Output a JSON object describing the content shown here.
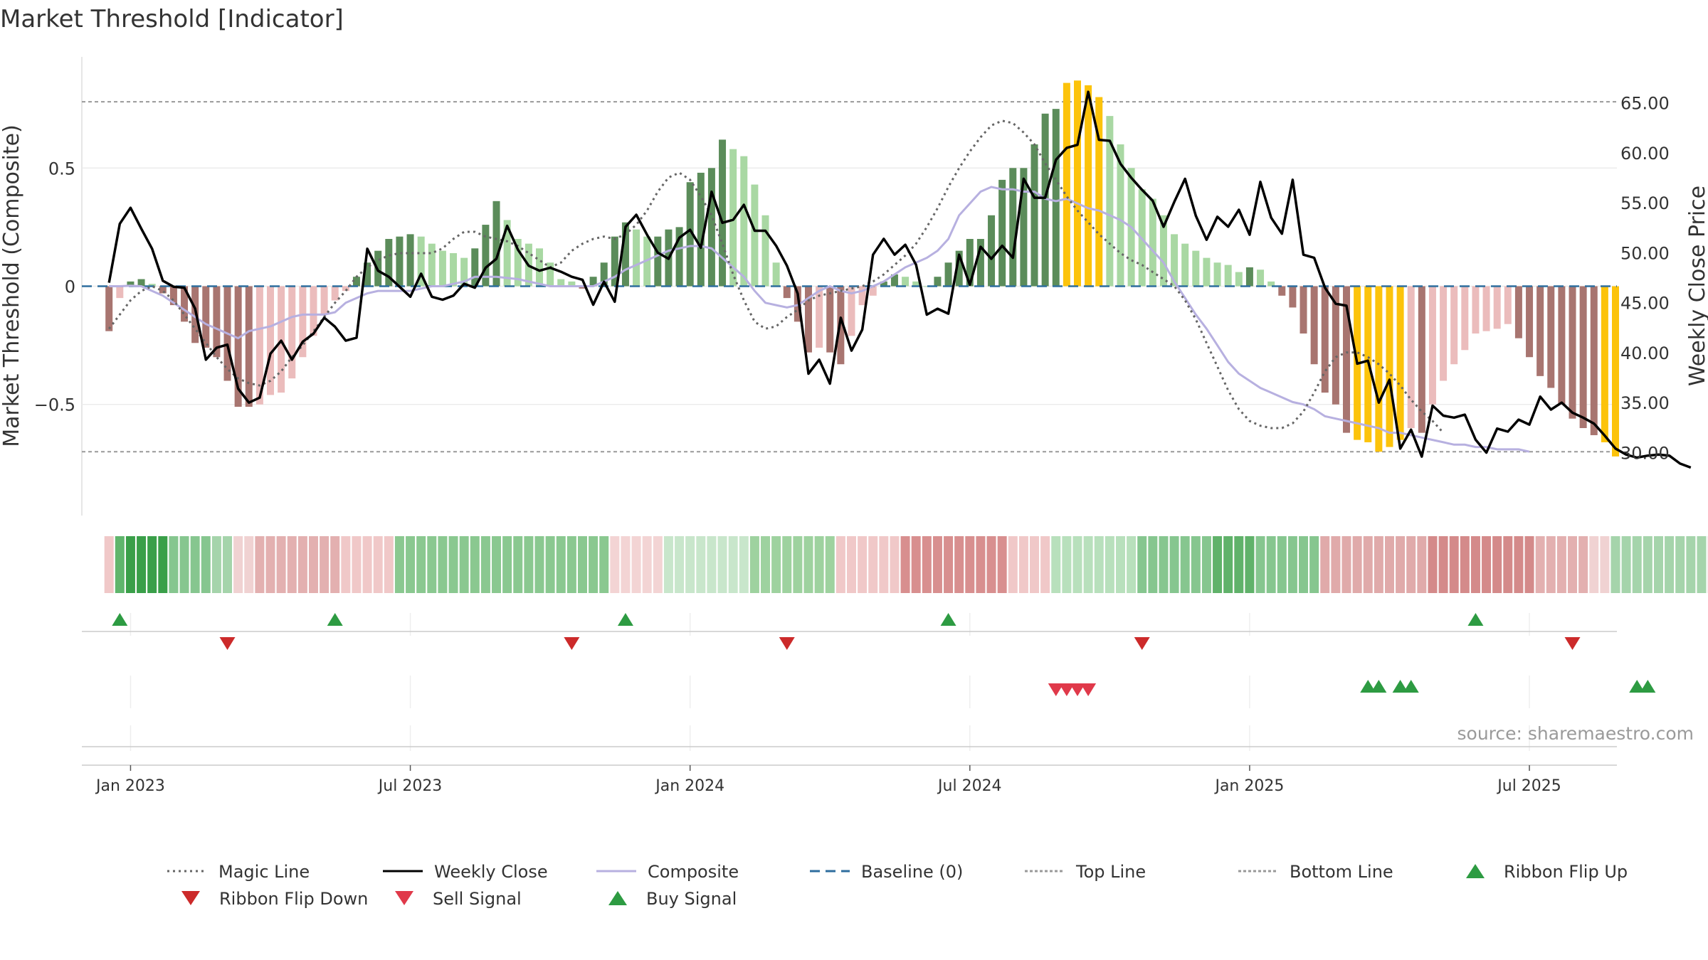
{
  "chart_data": {
    "type": "bar",
    "title": "Market Threshold [Indicator]",
    "source": "source: sharemaestro.com",
    "y_left_label": "Market Threshold (Composite)",
    "y_right_label": "Weekly Close Price",
    "y_left_range": [
      -0.97,
      0.97
    ],
    "y_right_range": [
      23.7,
      69.6
    ],
    "y_left_ticks": [
      {
        "value": 0.5,
        "label": "0.5"
      },
      {
        "value": 0,
        "label": "0"
      },
      {
        "value": -0.5,
        "label": "−0.5"
      }
    ],
    "y_right_ticks": [
      {
        "value": 65,
        "label": "65.00"
      },
      {
        "value": 60,
        "label": "60.00"
      },
      {
        "value": 55,
        "label": "55.00"
      },
      {
        "value": 50,
        "label": "50.00"
      },
      {
        "value": 45,
        "label": "45.00"
      },
      {
        "value": 40,
        "label": "40.00"
      },
      {
        "value": 35,
        "label": "35.00"
      },
      {
        "value": 30,
        "label": "30.00"
      }
    ],
    "x_ticks": [
      {
        "week": 2,
        "label": "Jan 2023"
      },
      {
        "week": 28,
        "label": "Jul 2023"
      },
      {
        "week": 54,
        "label": "Jan 2024"
      },
      {
        "week": 80,
        "label": "Jul 2024"
      },
      {
        "week": 106,
        "label": "Jan 2025"
      },
      {
        "week": 132,
        "label": "Jul 2025"
      }
    ],
    "top_line": 0.78,
    "bottom_line": -0.7,
    "bar_values": [
      -0.19,
      -0.05,
      0.02,
      0.03,
      0.01,
      -0.03,
      -0.08,
      -0.15,
      -0.24,
      -0.26,
      -0.3,
      -0.4,
      -0.51,
      -0.51,
      -0.5,
      -0.46,
      -0.45,
      -0.39,
      -0.3,
      -0.21,
      -0.12,
      -0.06,
      -0.02,
      0.04,
      0.1,
      0.15,
      0.2,
      0.21,
      0.22,
      0.21,
      0.18,
      0.15,
      0.14,
      0.12,
      0.16,
      0.26,
      0.36,
      0.28,
      0.2,
      0.18,
      0.16,
      0.1,
      0.03,
      0.02,
      -0.01,
      0.04,
      0.1,
      0.21,
      0.27,
      0.24,
      0.21,
      0.21,
      0.24,
      0.25,
      0.44,
      0.48,
      0.5,
      0.62,
      0.58,
      0.55,
      0.43,
      0.3,
      0.1,
      -0.05,
      -0.15,
      -0.28,
      -0.26,
      -0.28,
      -0.33,
      -0.21,
      -0.08,
      -0.04,
      0.02,
      0.05,
      0.04,
      0.02,
      0.0,
      0.04,
      0.1,
      0.15,
      0.2,
      0.2,
      0.3,
      0.45,
      0.5,
      0.5,
      0.6,
      0.73,
      0.75,
      0.86,
      0.87,
      0.85,
      0.8,
      0.72,
      0.6,
      0.5,
      0.41,
      0.37,
      0.3,
      0.22,
      0.18,
      0.15,
      0.12,
      0.1,
      0.09,
      0.06,
      0.08,
      0.07,
      0.02,
      -0.04,
      -0.09,
      -0.2,
      -0.33,
      -0.45,
      -0.5,
      -0.62,
      -0.65,
      -0.66,
      -0.7,
      -0.68,
      -0.65,
      -0.6,
      -0.62,
      -0.5,
      -0.4,
      -0.33,
      -0.27,
      -0.2,
      -0.19,
      -0.18,
      -0.16,
      -0.22,
      -0.3,
      -0.38,
      -0.43,
      -0.5,
      -0.56,
      -0.6,
      -0.63,
      -0.66,
      -0.72
    ],
    "weekly_close": [
      47,
      52.9,
      54.5,
      52.4,
      50.4,
      47.2,
      46.6,
      46.5,
      44.4,
      39.3,
      40.5,
      40.8,
      36.4,
      35,
      35.5,
      39.9,
      41.2,
      39.3,
      41.1,
      41.9,
      43.5,
      42.6,
      41.2,
      41.5,
      50.4,
      48.2,
      47.6,
      46.6,
      45.6,
      47.9,
      45.6,
      45.3,
      45.7,
      46.9,
      46.5,
      48.5,
      49.4,
      52.7,
      50.3,
      48.7,
      48.2,
      48.5,
      48.1,
      47.6,
      47.3,
      44.8,
      47.1,
      45.1,
      52.6,
      53.8,
      51.8,
      50,
      49.4,
      51.5,
      52.3,
      50.5,
      56.1,
      53,
      53.3,
      54.8,
      52.2,
      52.2,
      50.7,
      48.7,
      45.9,
      37.9,
      39.3,
      36.9,
      43.5,
      40.2,
      42.3,
      49.8,
      51.4,
      49.8,
      50.8,
      48.8,
      43.8,
      44.4,
      43.9,
      49.8,
      46.8,
      50.6,
      49.4,
      50.7,
      49.5,
      57.4,
      55.5,
      55.5,
      59.3,
      60.5,
      60.8,
      66.1,
      61.3,
      61.2,
      58.9,
      57.5,
      56.3,
      55.2,
      52.6,
      55.1,
      57.4,
      53.7,
      51.3,
      53.6,
      52.6,
      54.3,
      51.8,
      57.1,
      53.5,
      51.9,
      57.3,
      49.8,
      49.5,
      46.5,
      44.9,
      44.7,
      38.9,
      39.2,
      35,
      37.3,
      30.4,
      32.3,
      29.6,
      34.7,
      33.7,
      33.5,
      33.8,
      31.3,
      30,
      32.4,
      32.1,
      33.3,
      32.8,
      35.6,
      34.3,
      35,
      34,
      33.5,
      32.9,
      31.7,
      30.4,
      29.8,
      29.5,
      29.7,
      29.8,
      29.7,
      28.9,
      28.5
    ],
    "composite": [
      0,
      0,
      0.002,
      0,
      -0.02,
      -0.04,
      -0.07,
      -0.1,
      -0.13,
      -0.16,
      -0.18,
      -0.2,
      -0.22,
      -0.19,
      -0.18,
      -0.17,
      -0.15,
      -0.13,
      -0.12,
      -0.12,
      -0.12,
      -0.11,
      -0.07,
      -0.05,
      -0.03,
      -0.02,
      -0.02,
      -0.02,
      -0.02,
      -0.01,
      0,
      0,
      0.01,
      0.02,
      0.04,
      0.04,
      0.04,
      0.035,
      0.03,
      0.02,
      0.01,
      0,
      0,
      0,
      0,
      0,
      0.02,
      0.04,
      0.07,
      0.09,
      0.11,
      0.13,
      0.15,
      0.16,
      0.17,
      0.17,
      0.16,
      0.12,
      0.08,
      0.04,
      -0.02,
      -0.07,
      -0.08,
      -0.09,
      -0.08,
      -0.05,
      -0.02,
      0,
      -0.02,
      -0.03,
      -0.02,
      0,
      0.02,
      0.05,
      0.08,
      0.1,
      0.12,
      0.15,
      0.2,
      0.3,
      0.35,
      0.4,
      0.42,
      0.41,
      0.41,
      0.4,
      0.4,
      0.37,
      0.36,
      0.37,
      0.35,
      0.33,
      0.32,
      0.3,
      0.28,
      0.25,
      0.2,
      0.15,
      0.1,
      0.02,
      -0.05,
      -0.12,
      -0.18,
      -0.25,
      -0.32,
      -0.37,
      -0.4,
      -0.43,
      -0.45,
      -0.47,
      -0.49,
      -0.5,
      -0.52,
      -0.55,
      -0.56,
      -0.57,
      -0.58,
      -0.59,
      -0.6,
      -0.62,
      -0.62,
      -0.63,
      -0.64,
      -0.65,
      -0.66,
      -0.67,
      -0.67,
      -0.68,
      -0.68,
      -0.69,
      -0.69,
      -0.69,
      -0.7
    ],
    "magic_line": [
      -0.18,
      -0.12,
      -0.06,
      -0.02,
      0,
      -0.02,
      -0.06,
      -0.12,
      -0.18,
      -0.24,
      -0.3,
      -0.35,
      -0.39,
      -0.41,
      -0.42,
      -0.4,
      -0.36,
      -0.3,
      -0.25,
      -0.19,
      -0.13,
      -0.07,
      -0.02,
      0.04,
      0.08,
      0.11,
      0.13,
      0.14,
      0.14,
      0.14,
      0.14,
      0.16,
      0.2,
      0.23,
      0.23,
      0.21,
      0.2,
      0.19,
      0.17,
      0.14,
      0.11,
      0.08,
      0.1,
      0.15,
      0.18,
      0.2,
      0.21,
      0.2,
      0.22,
      0.26,
      0.32,
      0.4,
      0.46,
      0.48,
      0.45,
      0.38,
      0.3,
      0.18,
      0.05,
      -0.06,
      -0.15,
      -0.18,
      -0.17,
      -0.13,
      -0.1,
      -0.06,
      -0.04,
      -0.03,
      -0.02,
      -0.01,
      0,
      0.02,
      0.05,
      0.09,
      0.13,
      0.18,
      0.25,
      0.33,
      0.42,
      0.5,
      0.57,
      0.63,
      0.68,
      0.7,
      0.69,
      0.65,
      0.6,
      0.52,
      0.45,
      0.38,
      0.32,
      0.27,
      0.22,
      0.18,
      0.14,
      0.11,
      0.09,
      0.06,
      0.03,
      0,
      -0.06,
      -0.14,
      -0.24,
      -0.34,
      -0.44,
      -0.52,
      -0.57,
      -0.59,
      -0.6,
      -0.6,
      -0.58,
      -0.53,
      -0.45,
      -0.36,
      -0.3,
      -0.28,
      -0.28,
      -0.3,
      -0.33,
      -0.37,
      -0.42,
      -0.48,
      -0.53,
      -0.57,
      -0.62
    ]
  },
  "ribbon": {
    "segments": [
      {
        "length": 1,
        "color": "#f0c8c8"
      },
      {
        "length": 1,
        "color": "#5fb56c"
      },
      {
        "length": 4,
        "color": "#3a9f49"
      },
      {
        "length": 4,
        "color": "#86c68f"
      },
      {
        "length": 2,
        "color": "#a5d4ab"
      },
      {
        "length": 2,
        "color": "#f0d2d2"
      },
      {
        "length": 8,
        "color": "#e3b0b0"
      },
      {
        "length": 5,
        "color": "#f0c8c8"
      },
      {
        "length": 20,
        "color": "#8ac890"
      },
      {
        "length": 5,
        "color": "#f3d4d4"
      },
      {
        "length": 8,
        "color": "#c8e6cb"
      },
      {
        "length": 8,
        "color": "#9ed29f"
      },
      {
        "length": 6,
        "color": "#f0c8c8"
      },
      {
        "length": 10,
        "color": "#d88f8f"
      },
      {
        "length": 4,
        "color": "#f0c8c8"
      },
      {
        "length": 8,
        "color": "#b8e0bc"
      },
      {
        "length": 7,
        "color": "#86c68f"
      },
      {
        "length": 4,
        "color": "#60b26a"
      },
      {
        "length": 6,
        "color": "#86c68f"
      },
      {
        "length": 10,
        "color": "#e0aaaa"
      },
      {
        "length": 10,
        "color": "#d48a8a"
      },
      {
        "length": 5,
        "color": "#e3b0b0"
      },
      {
        "length": 2,
        "color": "#f0d2d2"
      },
      {
        "length": 9,
        "color": "#a5d4ab"
      },
      {
        "length": 3,
        "color": "#eccaca"
      },
      {
        "length": 3,
        "color": "#e3b0b0"
      }
    ]
  },
  "signals": {
    "ribbon_flip_up": [
      1,
      21,
      48,
      78,
      127
    ],
    "ribbon_flip_down": [
      11,
      43,
      63,
      96,
      136
    ],
    "sell_signal": [
      88,
      89,
      90,
      91
    ],
    "buy_signal": [
      117,
      118,
      120,
      121,
      142,
      143
    ]
  },
  "legend": [
    {
      "label": "Magic Line",
      "kind": "line",
      "color": "#666666",
      "dash": "3,5"
    },
    {
      "label": "Weekly Close",
      "kind": "line",
      "color": "#000000",
      "dash": ""
    },
    {
      "label": "Composite",
      "kind": "line",
      "color": "#b7b0e0",
      "dash": ""
    },
    {
      "label": "Baseline (0)",
      "kind": "line",
      "color": "#2e6e9e",
      "dash": "14,8"
    },
    {
      "label": "Top Line",
      "kind": "line",
      "color": "#999999",
      "dash": "4,3"
    },
    {
      "label": "Bottom Line",
      "kind": "line",
      "color": "#999999",
      "dash": "4,3"
    },
    {
      "label": "Ribbon Flip Up",
      "kind": "tri-up",
      "color": "#2d9b42",
      "dash": ""
    },
    {
      "label": "Ribbon Flip Down",
      "kind": "tri-down",
      "color": "#cc2a2a",
      "dash": ""
    },
    {
      "label": "Sell Signal",
      "kind": "tri-down",
      "color": "#e0394a",
      "dash": ""
    },
    {
      "label": "Buy Signal",
      "kind": "tri-up",
      "color": "#2d9b42",
      "dash": ""
    }
  ],
  "colors": {
    "dark_green": "#5b8c5a",
    "light_green": "#a9d8a3",
    "dark_red": "#a87570",
    "light_red": "#ebbcbc",
    "yellow": "#fcc30b",
    "close": "#000000",
    "composite": "#b7b0e0",
    "magic": "#666666",
    "baseline": "#2e6e9e"
  }
}
